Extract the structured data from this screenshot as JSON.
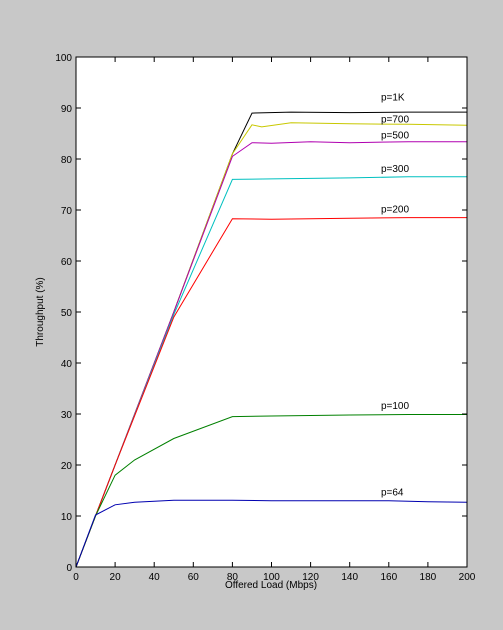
{
  "chart_data": {
    "type": "line",
    "title": "",
    "xlabel": "Offered Load (Mbps)",
    "ylabel": "Throughput (%)",
    "xlim": [
      0,
      200
    ],
    "ylim": [
      0,
      100
    ],
    "xticks": [
      0,
      20,
      40,
      60,
      80,
      100,
      120,
      140,
      160,
      180,
      200
    ],
    "yticks": [
      0,
      10,
      20,
      30,
      40,
      50,
      60,
      70,
      80,
      90,
      100
    ],
    "grid": false,
    "series": [
      {
        "name": "p=1K",
        "color": "#000000",
        "x": [
          0,
          10,
          20,
          50,
          80,
          90,
          110,
          140,
          170,
          200
        ],
        "y": [
          0,
          10,
          20,
          50,
          81,
          89,
          89.2,
          89.1,
          89.2,
          89.2
        ]
      },
      {
        "name": "p=700",
        "color": "#c8c800",
        "x": [
          0,
          10,
          20,
          50,
          80,
          90,
          95,
          110,
          140,
          170,
          200
        ],
        "y": [
          0,
          10,
          20,
          50,
          81,
          86.7,
          86.3,
          87.1,
          86.9,
          86.8,
          86.6
        ]
      },
      {
        "name": "p=500",
        "color": "#b000b0",
        "x": [
          0,
          10,
          20,
          50,
          80,
          90,
          100,
          120,
          140,
          170,
          200
        ],
        "y": [
          0,
          10,
          20,
          50,
          80.5,
          83.2,
          83.1,
          83.4,
          83.2,
          83.4,
          83.4
        ]
      },
      {
        "name": "p=300",
        "color": "#00c0c0",
        "x": [
          0,
          10,
          20,
          50,
          80,
          100,
          140,
          170,
          200
        ],
        "y": [
          0,
          10,
          20,
          49.5,
          76,
          76.1,
          76.3,
          76.5,
          76.5
        ]
      },
      {
        "name": "p=200",
        "color": "#ff0000",
        "x": [
          0,
          10,
          20,
          50,
          80,
          100,
          140,
          170,
          200
        ],
        "y": [
          0,
          10,
          20,
          49,
          68.3,
          68.2,
          68.4,
          68.5,
          68.5
        ]
      },
      {
        "name": "p=100",
        "color": "#008000",
        "x": [
          0,
          10,
          20,
          30,
          50,
          80,
          100,
          140,
          170,
          200
        ],
        "y": [
          0,
          10,
          18,
          21,
          25.2,
          29.5,
          29.6,
          29.8,
          29.9,
          29.9
        ]
      },
      {
        "name": "p=64",
        "color": "#0000b0",
        "x": [
          0,
          10,
          20,
          30,
          50,
          80,
          100,
          140,
          160,
          180,
          200
        ],
        "y": [
          0,
          10.2,
          12.2,
          12.7,
          13.1,
          13.1,
          13,
          13,
          13,
          12.8,
          12.7
        ]
      }
    ],
    "annotations": [
      {
        "text": "p=1K",
        "x": 156,
        "y": 91.5
      },
      {
        "text": "p=700",
        "x": 156,
        "y": 87.2
      },
      {
        "text": "p=500",
        "x": 156,
        "y": 84
      },
      {
        "text": "p=300",
        "x": 156,
        "y": 77.5
      },
      {
        "text": "p=200",
        "x": 156,
        "y": 69.5
      },
      {
        "text": "p=100",
        "x": 156,
        "y": 31
      },
      {
        "text": "p=64",
        "x": 156,
        "y": 14
      }
    ]
  }
}
